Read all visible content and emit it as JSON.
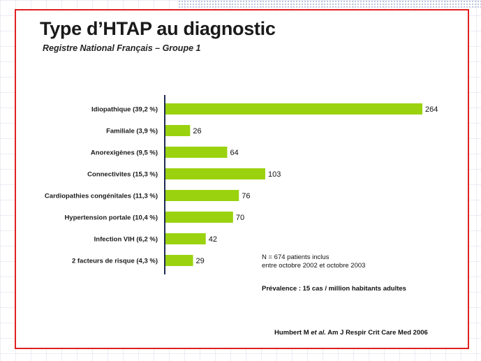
{
  "slide": {
    "title": "Type d’HTAP au diagnostic",
    "subtitle": "Registre National Français – Groupe 1",
    "border_color": "#e02020"
  },
  "chart_data": {
    "type": "bar",
    "orientation": "horizontal",
    "categories": [
      "Idiopathique (39,2 %)",
      "Familiale (3,9 %)",
      "Anorexigènes (9,5 %)",
      "Connectivites (15,3 %)",
      "Cardiopathies congénitales (11,3 %)",
      "Hypertension portale (10,4 %)",
      "Infection VIH (6,2 %)",
      "2 facteurs de risque (4,3 %)"
    ],
    "values": [
      264,
      26,
      64,
      103,
      76,
      70,
      42,
      29
    ],
    "bar_color": "#9bd20f",
    "grid": false,
    "legend": "none"
  },
  "notes": {
    "n_line": "N = 674 patients inclus",
    "period_line": "entre octobre 2002 et octobre 2003",
    "prevalence_line": "Prévalence : 15 cas / million habitants adultes"
  },
  "citation": {
    "authors": "Humbert M ",
    "etal": "et al.",
    "source": " Am J Respir Crit Care Med 2006"
  }
}
